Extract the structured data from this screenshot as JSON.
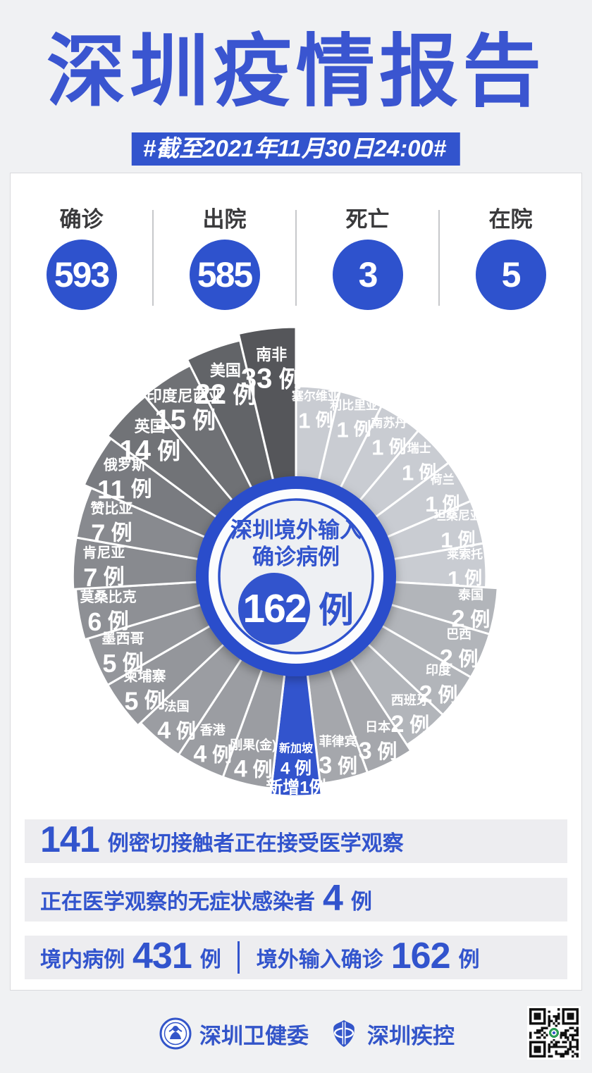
{
  "header": {
    "title": "深圳疫情报告",
    "date_badge": "#截至2021年11月30日24:00#"
  },
  "stats": {
    "items": [
      {
        "label": "确诊",
        "value": "593"
      },
      {
        "label": "出院",
        "value": "585"
      },
      {
        "label": "死亡",
        "value": "3"
      },
      {
        "label": "在院",
        "value": "5"
      }
    ]
  },
  "chart_data": {
    "type": "rose",
    "title": "深圳境外输入确诊病例",
    "center": {
      "line1": "深圳境外输入",
      "line2": "确诊病例",
      "total": "162",
      "unit": "例"
    },
    "unit": "例",
    "total": 162,
    "direction": "clockwise",
    "start_angle_deg": 0,
    "angle": "equal-27-slices",
    "radius_scale": "log",
    "colors": {
      "accent": "#3254cd",
      "gray_light": "#c9ccd2",
      "gray_dark": "#55565a"
    },
    "slices": [
      {
        "name": "塞尔维亚",
        "value": 1
      },
      {
        "name": "利比里亚",
        "value": 1
      },
      {
        "name": "南苏丹",
        "value": 1
      },
      {
        "name": "瑞士",
        "value": 1
      },
      {
        "name": "荷兰",
        "value": 1
      },
      {
        "name": "坦桑尼亚",
        "value": 1
      },
      {
        "name": "莱索托",
        "value": 1
      },
      {
        "name": "泰国",
        "value": 2
      },
      {
        "name": "巴西",
        "value": 2
      },
      {
        "name": "印度",
        "value": 2
      },
      {
        "name": "西班牙",
        "value": 2
      },
      {
        "name": "日本",
        "value": 3
      },
      {
        "name": "菲律宾",
        "value": 3
      },
      {
        "name": "新加坡",
        "value": 4,
        "highlight": true,
        "extra_label": "新增1例"
      },
      {
        "name": "刚果(金)",
        "value": 4
      },
      {
        "name": "香港",
        "value": 4
      },
      {
        "name": "法国",
        "value": 4
      },
      {
        "name": "柬埔寨",
        "value": 5
      },
      {
        "name": "墨西哥",
        "value": 5
      },
      {
        "name": "莫桑比克",
        "value": 6
      },
      {
        "name": "肯尼亚",
        "value": 7
      },
      {
        "name": "赞比亚",
        "value": 7
      },
      {
        "name": "俄罗斯",
        "value": 11
      },
      {
        "name": "英国",
        "value": 14
      },
      {
        "name": "印度尼西亚",
        "value": 15
      },
      {
        "name": "美国",
        "value": 22
      },
      {
        "name": "南非",
        "value": 33
      }
    ]
  },
  "info_rows": [
    {
      "name": "close-contacts",
      "segments": [
        {
          "text": "141",
          "big": true
        },
        {
          "text": "例密切接触者正在接受医学观察"
        }
      ]
    },
    {
      "name": "asymptomatic",
      "segments": [
        {
          "text": "正在医学观察的无症状感染者"
        },
        {
          "text": "4",
          "big": true
        },
        {
          "text": "例"
        }
      ]
    },
    {
      "name": "case-split",
      "segments": [
        {
          "text": "境内病例"
        },
        {
          "text": "431",
          "big": true
        },
        {
          "text": "例"
        },
        {
          "divider": true
        },
        {
          "text": "境外输入确诊"
        },
        {
          "text": "162",
          "big": true
        },
        {
          "text": "例"
        }
      ]
    }
  ],
  "footer": {
    "items": [
      {
        "label": "深圳卫健委"
      },
      {
        "label": "深圳疾控"
      }
    ]
  },
  "colors": {
    "accent": "#3254cd",
    "title": "#3a55d0",
    "page_bg": "#f0f1f3",
    "card_bg": "#ffffff",
    "row_bg": "#ededf0",
    "stat_label": "#3a3a3c"
  }
}
